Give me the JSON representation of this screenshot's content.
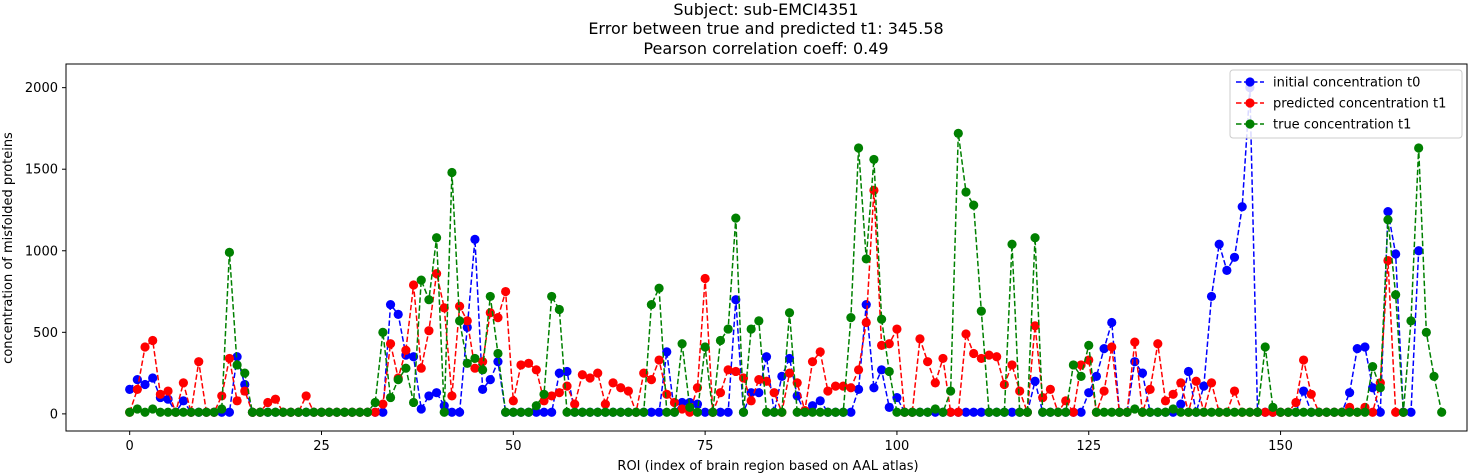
{
  "chart_data": {
    "type": "line",
    "title": [
      "Subject: sub-EMCI4351",
      "Error between true and predicted t1: 345.58",
      "Pearson correlation coeff: 0.49"
    ],
    "xlabel": "ROI (index of brain region based on AAL atlas)",
    "ylabel": "concentration of misfolded proteins",
    "xlim": [
      -8.3,
      174.3
    ],
    "ylim": [
      -105,
      2145
    ],
    "xticks": [
      0,
      25,
      50,
      75,
      100,
      125,
      150
    ],
    "yticks": [
      0,
      500,
      1000,
      1500,
      2000
    ],
    "grid": false,
    "legend_position": "top-right",
    "series": [
      {
        "name": "initial concentration t0",
        "color": "#0000ff",
        "values": [
          150,
          210,
          180,
          220,
          100,
          90,
          10,
          80,
          10,
          10,
          10,
          10,
          10,
          10,
          350,
          180,
          10,
          10,
          10,
          10,
          10,
          10,
          10,
          10,
          10,
          10,
          10,
          10,
          10,
          10,
          10,
          10,
          10,
          10,
          670,
          610,
          360,
          350,
          30,
          110,
          130,
          50,
          10,
          10,
          530,
          1070,
          150,
          210,
          320,
          10,
          10,
          10,
          10,
          10,
          10,
          10,
          250,
          260,
          10,
          10,
          10,
          10,
          10,
          10,
          10,
          10,
          10,
          10,
          10,
          10,
          380,
          10,
          70,
          70,
          60,
          10,
          10,
          10,
          10,
          700,
          10,
          130,
          130,
          350,
          10,
          230,
          340,
          110,
          10,
          50,
          80,
          10,
          10,
          10,
          10,
          150,
          670,
          160,
          270,
          40,
          100,
          10,
          10,
          10,
          10,
          10,
          10,
          10,
          10,
          10,
          10,
          10,
          10,
          10,
          10,
          10,
          10,
          10,
          200,
          10,
          10,
          10,
          10,
          10,
          10,
          130,
          230,
          400,
          560,
          10,
          10,
          320,
          250,
          10,
          10,
          10,
          10,
          60,
          260,
          10,
          170,
          720,
          1040,
          880,
          960,
          1270,
          2000,
          10,
          10,
          10,
          10,
          10,
          10,
          140,
          10,
          10,
          10,
          10,
          10,
          130,
          400,
          410,
          160,
          10,
          1240,
          980,
          10,
          10,
          1000
        ],
        "x_start": 0
      },
      {
        "name": "predicted concentration t1",
        "color": "#ff0000",
        "values": [
          10,
          150,
          410,
          450,
          120,
          140,
          10,
          190,
          10,
          320,
          10,
          10,
          110,
          340,
          80,
          140,
          10,
          10,
          70,
          90,
          10,
          10,
          10,
          110,
          10,
          10,
          10,
          10,
          10,
          10,
          10,
          10,
          10,
          60,
          430,
          220,
          390,
          790,
          280,
          510,
          860,
          650,
          110,
          660,
          570,
          280,
          320,
          620,
          590,
          750,
          80,
          300,
          310,
          270,
          80,
          110,
          130,
          170,
          60,
          240,
          220,
          250,
          60,
          190,
          160,
          140,
          10,
          250,
          210,
          330,
          120,
          70,
          30,
          10,
          160,
          830,
          10,
          130,
          270,
          260,
          220,
          80,
          210,
          200,
          130,
          10,
          250,
          190,
          20,
          320,
          380,
          140,
          170,
          170,
          160,
          270,
          560,
          1370,
          420,
          430,
          520,
          10,
          10,
          460,
          320,
          190,
          340,
          10,
          10,
          490,
          370,
          340,
          360,
          350,
          180,
          300,
          140,
          10,
          540,
          100,
          150,
          10,
          80,
          10,
          300,
          330,
          10,
          140,
          410,
          10,
          10,
          440,
          10,
          150,
          430,
          80,
          120,
          190,
          10,
          200,
          10,
          190,
          10,
          10,
          140,
          10,
          10,
          10,
          10,
          10,
          10,
          10,
          70,
          330,
          120,
          10,
          10,
          10,
          10,
          40,
          10,
          40,
          10,
          190,
          940,
          10,
          10
        ],
        "x_start": 0
      },
      {
        "name": "true concentration t1",
        "color": "#008000",
        "values": [
          10,
          30,
          10,
          30,
          10,
          10,
          10,
          10,
          10,
          10,
          10,
          10,
          30,
          990,
          300,
          250,
          10,
          10,
          10,
          10,
          10,
          10,
          10,
          10,
          10,
          10,
          10,
          10,
          10,
          10,
          10,
          10,
          70,
          500,
          100,
          210,
          280,
          70,
          820,
          700,
          1080,
          10,
          1480,
          570,
          310,
          340,
          270,
          720,
          370,
          10,
          10,
          10,
          10,
          50,
          120,
          720,
          640,
          10,
          10,
          10,
          10,
          10,
          10,
          10,
          10,
          10,
          10,
          10,
          670,
          770,
          10,
          10,
          430,
          40,
          10,
          410,
          10,
          450,
          520,
          1200,
          10,
          520,
          570,
          10,
          10,
          10,
          620,
          10,
          10,
          10,
          10,
          10,
          10,
          10,
          590,
          1630,
          950,
          1560,
          580,
          260,
          10,
          10,
          10,
          10,
          10,
          30,
          10,
          140,
          1720,
          1360,
          1280,
          630,
          10,
          10,
          10,
          1040,
          10,
          10,
          1080,
          10,
          10,
          10,
          10,
          300,
          230,
          420,
          10,
          10,
          10,
          10,
          10,
          30,
          10,
          10,
          10,
          10,
          30,
          10,
          10,
          10,
          10,
          10,
          10,
          10,
          10,
          10,
          10,
          10,
          410,
          40,
          10,
          10,
          10,
          10,
          10,
          10,
          10,
          10,
          10,
          10,
          10,
          10,
          290,
          160,
          1190,
          730,
          10,
          570,
          1630,
          500,
          230,
          10
        ],
        "x_start": 0
      }
    ]
  }
}
